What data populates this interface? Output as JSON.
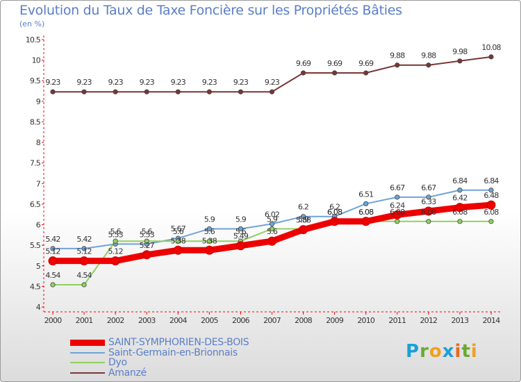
{
  "title": "Evolution du Taux de Taxe Foncière sur les Propriétés Bâties",
  "unit_label": "(en %)",
  "logo": [
    "P",
    "r",
    "o",
    "x",
    "i",
    "t",
    "i"
  ],
  "logo_colors": [
    "#1aa0d8",
    "#6aaa32",
    "#f0a020",
    "#1aa0d8",
    "#e86820",
    "#6aaa32",
    "#f0a020"
  ],
  "chart_data": {
    "type": "line",
    "title": "Evolution du Taux de Taxe Foncière sur les Propriétés Bâties",
    "ylabel": "(en %)",
    "xlabel": "",
    "x": [
      "2000",
      "2001",
      "2002",
      "2003",
      "2004",
      "2005",
      "2006",
      "2007",
      "2008",
      "2009",
      "2010",
      "2011",
      "2012",
      "2013",
      "2014"
    ],
    "ylim": [
      4,
      10.5
    ],
    "yticks": [
      "4",
      "4.5",
      "5",
      "5.5",
      "6",
      "6.5",
      "7",
      "7.5",
      "8",
      "8.5",
      "9",
      "9.5",
      "10",
      "10.5"
    ],
    "series": [
      {
        "name": "SAINT-SYMPHORIEN-DES-BOIS",
        "color": "#ee0000",
        "values": [
          5.12,
          5.12,
          5.12,
          5.27,
          5.38,
          5.38,
          5.49,
          5.6,
          5.88,
          6.08,
          6.08,
          6.24,
          6.33,
          6.42,
          6.48
        ],
        "labels": [
          "5.12",
          "5.12",
          "5.12",
          "5.27",
          "5.38",
          "5.38",
          "5.49",
          "5.6",
          "5.88",
          "6.08",
          "6.08",
          "6.24",
          "6.33",
          "6.42",
          "6.48"
        ]
      },
      {
        "name": "Saint-Germain-en-Brionnais",
        "color": "#6fa3d6",
        "values": [
          5.42,
          5.42,
          5.53,
          5.53,
          5.67,
          5.9,
          5.9,
          6.02,
          6.2,
          6.2,
          6.51,
          6.67,
          6.67,
          6.84,
          6.84
        ],
        "labels": [
          "5.42",
          "5.42",
          "5.53",
          "5.53",
          "5.67",
          "5.9",
          "5.9",
          "6.02",
          "6.2",
          "6.2",
          "6.51",
          "6.67",
          "6.67",
          "6.84",
          "6.84"
        ]
      },
      {
        "name": "Dyo",
        "color": "#90d060",
        "values": [
          4.54,
          4.54,
          5.6,
          5.6,
          5.6,
          5.6,
          5.6,
          5.9,
          5.9,
          6.08,
          6.08,
          6.08,
          6.08,
          6.08,
          6.08
        ],
        "labels": [
          "4.54",
          "4.54",
          "5.6",
          "5.6",
          "5.6",
          "5.6",
          "5.6",
          "5.9",
          "5.9",
          "6.08",
          "6.08",
          "6.08",
          "6.08",
          "6.08",
          "6.08"
        ]
      },
      {
        "name": "Amanzé",
        "color": "#7a3535",
        "values": [
          9.23,
          9.23,
          9.23,
          9.23,
          9.23,
          9.23,
          9.23,
          9.23,
          9.69,
          9.69,
          9.69,
          9.88,
          9.88,
          9.98,
          10.08
        ],
        "labels": [
          "9.23",
          "9.23",
          "9.23",
          "9.23",
          "9.23",
          "9.23",
          "9.23",
          "9.23",
          "9.69",
          "9.69",
          "9.69",
          "9.88",
          "9.88",
          "9.98",
          "10.08"
        ]
      }
    ],
    "legend_position": "bottom-left",
    "grid": false
  }
}
